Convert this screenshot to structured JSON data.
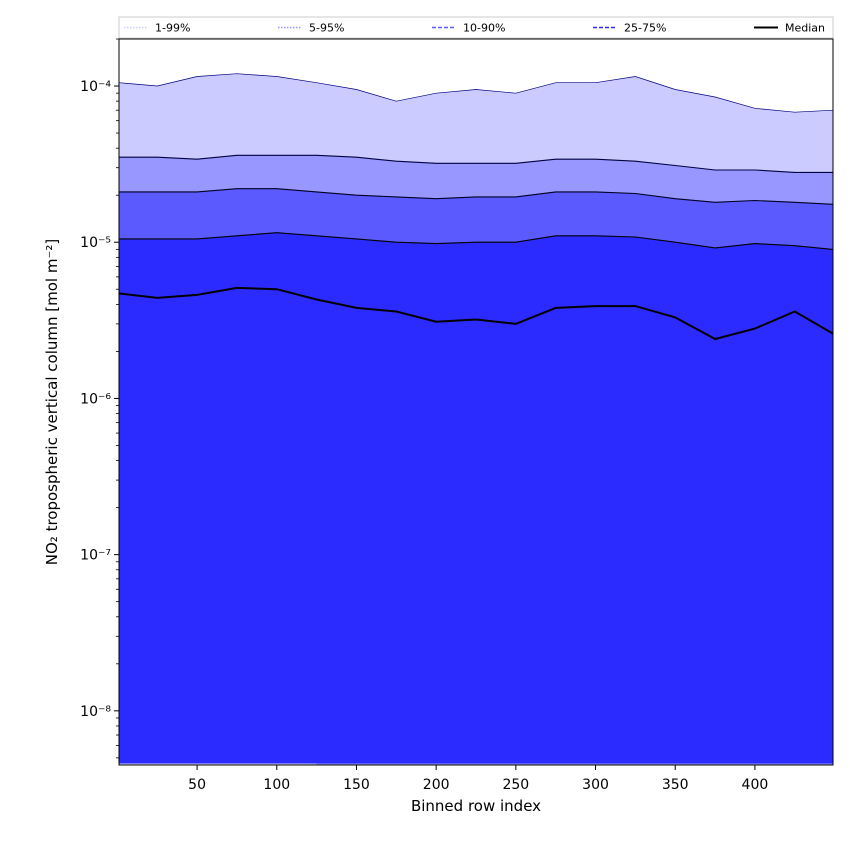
{
  "chart_data": {
    "type": "area",
    "xlabel": "Binned row index",
    "ylabel": "NO₂ tropospheric vertical column [mol m⁻²]",
    "xlim": [
      1,
      449
    ],
    "ylim": [
      4.5e-09,
      0.0002
    ],
    "yscale": "log",
    "grid": false,
    "legend_placement": "top",
    "x_ticks": [
      50,
      100,
      150,
      200,
      250,
      300,
      350,
      400
    ],
    "x_tick_labels": [
      "50",
      "100",
      "150",
      "200",
      "250",
      "300",
      "350",
      "400"
    ],
    "y_ticks": [
      1e-08,
      1e-07,
      1e-06,
      1e-05,
      0.0001
    ],
    "y_tick_labels": [
      "10⁻⁸",
      "10⁻⁷",
      "10⁻⁶",
      "10⁻⁵",
      "10⁻⁴"
    ],
    "x": [
      1,
      25,
      50,
      75,
      100,
      125,
      150,
      175,
      200,
      225,
      250,
      275,
      300,
      325,
      350,
      375,
      400,
      425,
      449
    ],
    "series": [
      {
        "name": "1-99%",
        "lower": [
          1e-09,
          1e-09,
          1e-09,
          1e-09,
          1e-09,
          1e-09,
          1e-09,
          1e-09,
          1e-09,
          1e-09,
          1e-09,
          1e-09,
          1e-09,
          1e-09,
          1e-09,
          1e-09,
          1e-09,
          1e-09,
          1e-09
        ],
        "upper": [
          0.000105,
          0.0001,
          0.000115,
          0.00012,
          0.000115,
          0.000105,
          9.5e-05,
          8e-05,
          9e-05,
          9.5e-05,
          9e-05,
          0.000105,
          0.000105,
          0.000115,
          9.5e-05,
          8.5e-05,
          7.2e-05,
          6.8e-05,
          7e-05
        ],
        "color": "#cbcbff",
        "line_color": "#000080",
        "line_style": "dotted"
      },
      {
        "name": "5-95%",
        "lower": [
          7e-07,
          5e-07,
          7e-07,
          9e-07,
          8e-07,
          1e-09,
          1e-09,
          1e-09,
          1e-09,
          1e-09,
          1e-09,
          1e-09,
          1e-09,
          1e-09,
          1e-09,
          1e-09,
          1e-09,
          1e-09,
          1e-09
        ],
        "upper": [
          3.5e-05,
          3.5e-05,
          3.4e-05,
          3.6e-05,
          3.6e-05,
          3.6e-05,
          3.5e-05,
          3.3e-05,
          3.2e-05,
          3.2e-05,
          3.2e-05,
          3.4e-05,
          3.4e-05,
          3.3e-05,
          3.1e-05,
          2.9e-05,
          2.9e-05,
          2.8e-05,
          2.8e-05
        ],
        "color": "#9797ff",
        "line_color": "#000040",
        "line_style": "solid"
      },
      {
        "name": "10-90%",
        "lower": [
          3e-06,
          3e-06,
          3e-06,
          3e-06,
          3e-06,
          3e-06,
          3e-06,
          3e-06,
          3e-06,
          3e-06,
          3e-06,
          3e-06,
          3e-06,
          3e-06,
          3e-06,
          3e-06,
          3e-06,
          3e-06,
          3e-06
        ],
        "upper": [
          2.1e-05,
          2.1e-05,
          2.1e-05,
          2.2e-05,
          2.2e-05,
          2.1e-05,
          2e-05,
          1.95e-05,
          1.9e-05,
          1.95e-05,
          1.95e-05,
          2.1e-05,
          2.1e-05,
          2.05e-05,
          1.9e-05,
          1.8e-05,
          1.85e-05,
          1.8e-05,
          1.75e-05
        ],
        "color": "#5a5aff",
        "line_color": "#000020",
        "line_style": "solid"
      },
      {
        "name": "25-75%",
        "lower": [
          4.6e-09,
          4.6e-09,
          4.6e-09,
          4.6e-09,
          4.6e-09,
          4.6e-09,
          4.6e-09,
          4.6e-09,
          4.6e-09,
          4.6e-09,
          4.6e-09,
          4.6e-09,
          4.6e-09,
          4.6e-09,
          4.6e-09,
          4.6e-09,
          4.6e-09,
          4.6e-09,
          4.6e-09
        ],
        "upper": [
          1.05e-05,
          1.05e-05,
          1.05e-05,
          1.1e-05,
          1.15e-05,
          1.1e-05,
          1.05e-05,
          1e-05,
          9.8e-06,
          1e-05,
          1e-05,
          1.1e-05,
          1.1e-05,
          1.08e-05,
          1e-05,
          9.2e-06,
          9.8e-06,
          9.5e-06,
          9e-06
        ],
        "color": "#2b2bff",
        "line_color": "#000000",
        "line_style": "solid"
      },
      {
        "name": "Median",
        "values": [
          4.7e-06,
          4.4e-06,
          4.6e-06,
          5.1e-06,
          5e-06,
          4.3e-06,
          3.8e-06,
          3.6e-06,
          3.1e-06,
          3.2e-06,
          3e-06,
          3.8e-06,
          3.9e-06,
          3.9e-06,
          3.3e-06,
          2.4e-06,
          2.8e-06,
          3.6e-06,
          2.6e-06
        ],
        "color": "#000000",
        "line_style": "solid"
      }
    ],
    "legend": [
      {
        "label": "1-99%",
        "color": "#cbcbff",
        "style": "dotted"
      },
      {
        "label": "5-95%",
        "color": "#9797ff",
        "style": "dotted"
      },
      {
        "label": "10-90%",
        "color": "#5a5aff",
        "style": "dashed"
      },
      {
        "label": "25-75%",
        "color": "#2b2bff",
        "style": "dashed"
      },
      {
        "label": "Median",
        "color": "#000000",
        "style": "solid"
      }
    ]
  }
}
